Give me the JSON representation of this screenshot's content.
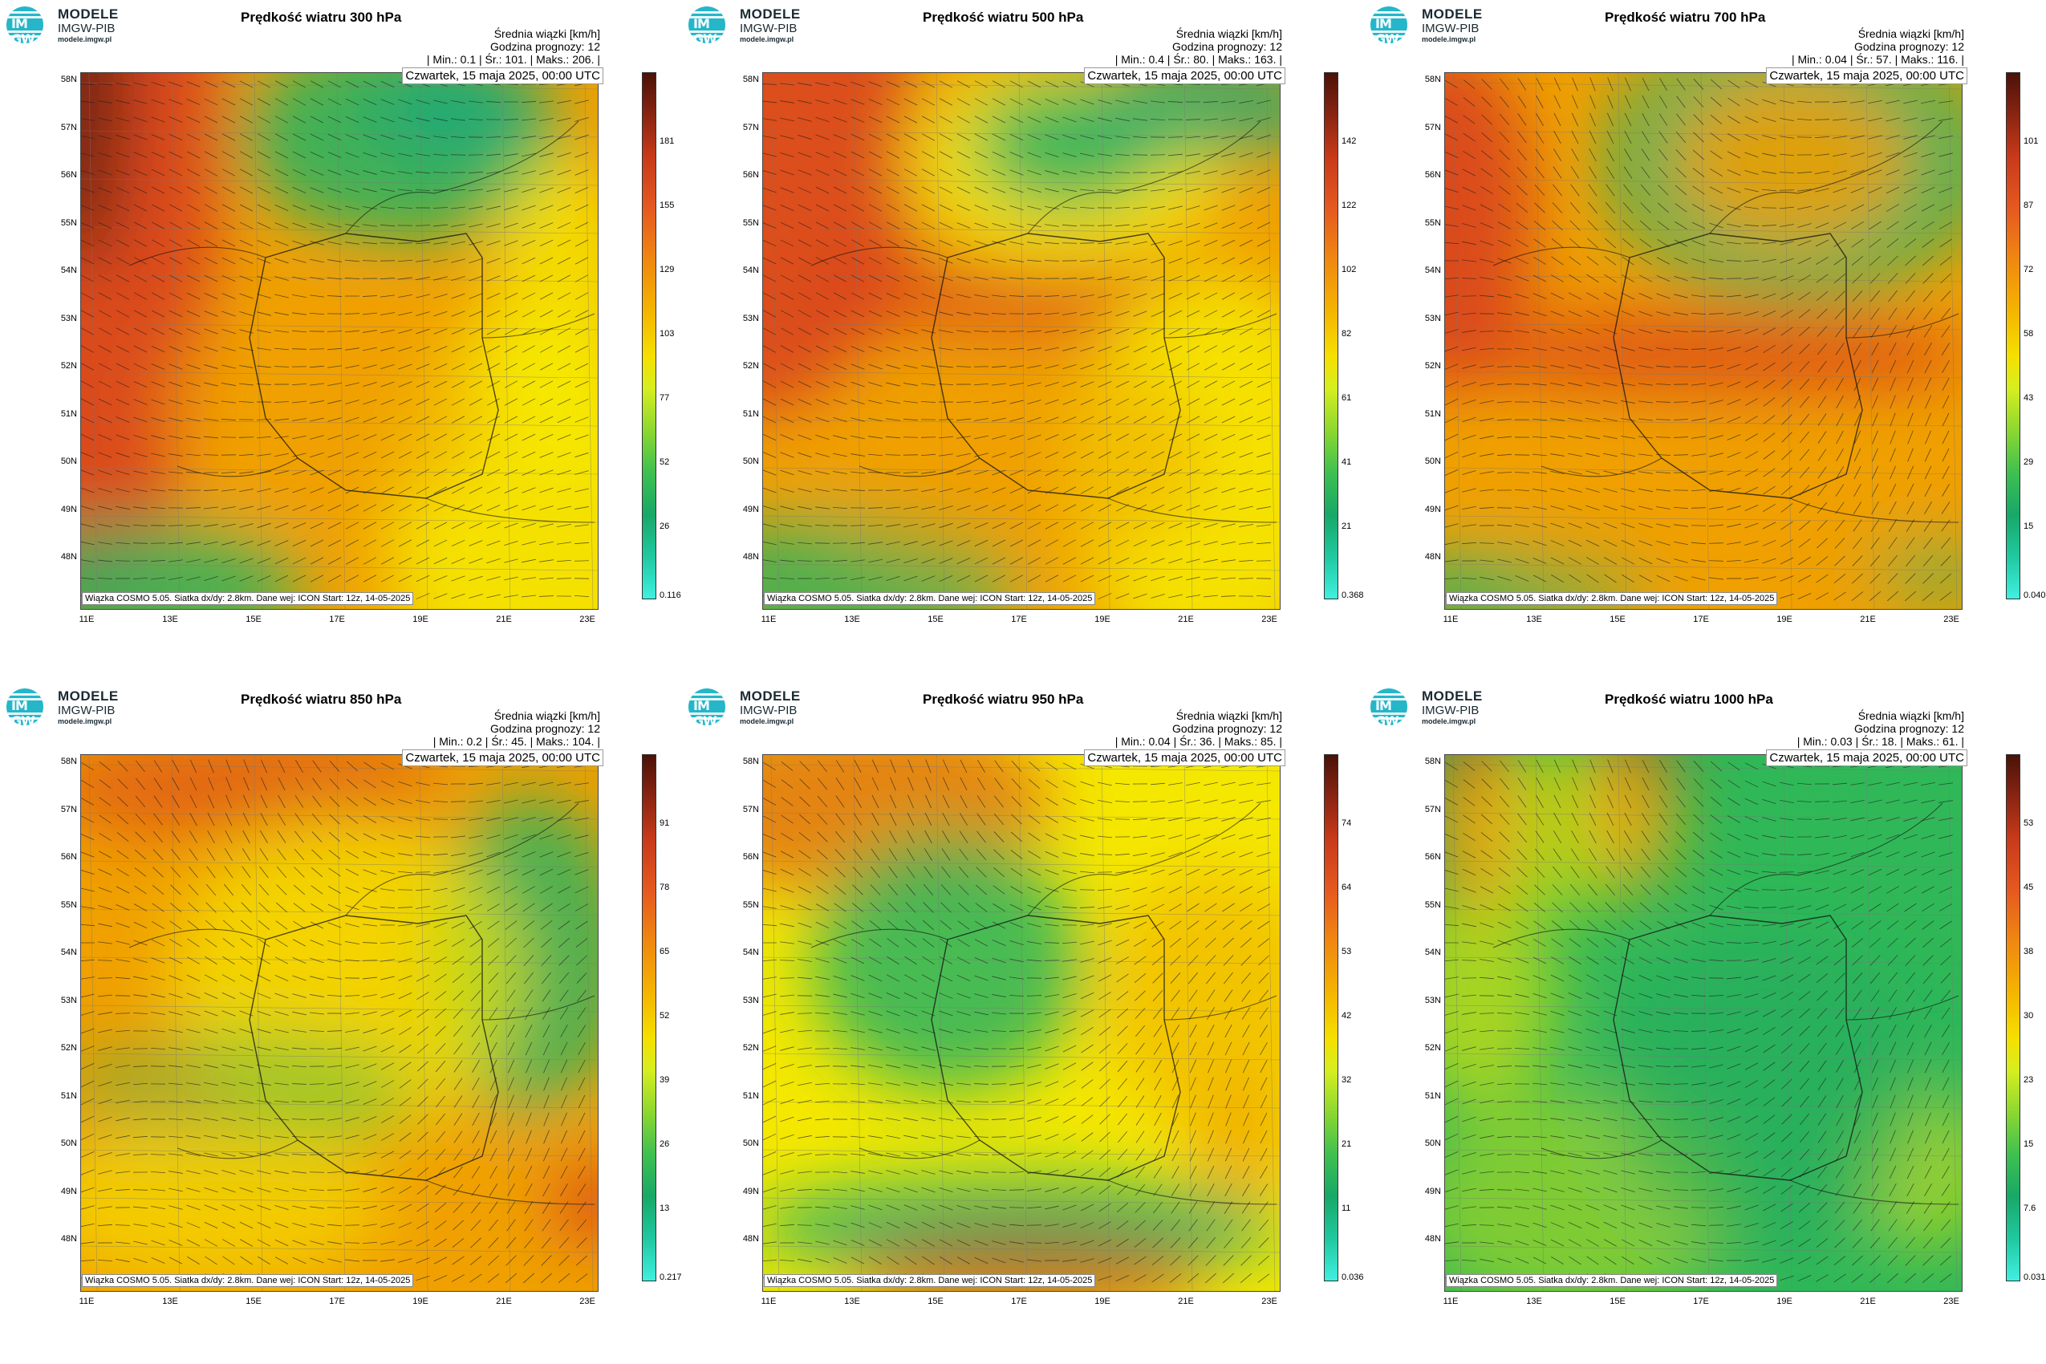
{
  "logo": {
    "line1": "MODELE",
    "line2": "IMGW-PIB",
    "line3": "modele.imgw.pl",
    "glyph": "IM GW"
  },
  "header": {
    "units": "Średnia wiązki [km/h]",
    "forecast": "Godzina prognozy: 12"
  },
  "date": "Czwartek, 15 maja 2025, 00:00 UTC",
  "footer": "Wiązka COSMO 5.05. Siatka dx/dy: 2.8km. Dane wej: ICON Start: 12z, 14-05-2025",
  "lat_labels": [
    "58N",
    "57N",
    "56N",
    "55N",
    "54N",
    "53N",
    "52N",
    "51N",
    "50N",
    "49N",
    "48N"
  ],
  "lon_labels": [
    "11E",
    "13E",
    "15E",
    "17E",
    "19E",
    "21E",
    "23E"
  ],
  "colors": {
    "green": "#2bb360",
    "yellow": "#f5e800",
    "orange": "#f0a000",
    "red": "#d8401e",
    "darkred": "#5a1a10",
    "cyan": "#3ef0d8"
  },
  "panels": [
    {
      "title": "Prędkość wiatru 300 hPa",
      "stats": "| Min.:    0.1 | Śr.:    101. | Maks.:    206. |",
      "cb_labels": [
        "181",
        "155",
        "129",
        "103",
        "77",
        "52",
        "26",
        "0.116"
      ],
      "map_type": "p300"
    },
    {
      "title": "Prędkość wiatru 500 hPa",
      "stats": "| Min.:    0.4 | Śr.:    80. | Maks.:    163. |",
      "cb_labels": [
        "142",
        "122",
        "102",
        "82",
        "61",
        "41",
        "21",
        "0.368"
      ],
      "map_type": "p500"
    },
    {
      "title": "Prędkość wiatru 700 hPa",
      "stats": "| Min.:    0.04 | Śr.:    57. | Maks.:    116. |",
      "cb_labels": [
        "101",
        "87",
        "72",
        "58",
        "43",
        "29",
        "15",
        "0.040"
      ],
      "map_type": "p700"
    },
    {
      "title": "Prędkość wiatru 850 hPa",
      "stats": "| Min.:    0.2 | Śr.:    45. | Maks.:    104. |",
      "cb_labels": [
        "91",
        "78",
        "65",
        "52",
        "39",
        "26",
        "13",
        "0.217"
      ],
      "map_type": "p850"
    },
    {
      "title": "Prędkość wiatru 950 hPa",
      "stats": "| Min.:    0.04 | Śr.:    36. | Maks.:    85. |",
      "cb_labels": [
        "74",
        "64",
        "53",
        "42",
        "32",
        "21",
        "11",
        "0.036"
      ],
      "map_type": "p950"
    },
    {
      "title": "Prędkość wiatru 1000 hPa",
      "stats": "| Min.:    0.03 | Śr.:    18. | Maks.:    61. |",
      "cb_labels": [
        "53",
        "45",
        "38",
        "30",
        "23",
        "15",
        "7.6",
        "0.031"
      ],
      "map_type": "p1000"
    }
  ]
}
